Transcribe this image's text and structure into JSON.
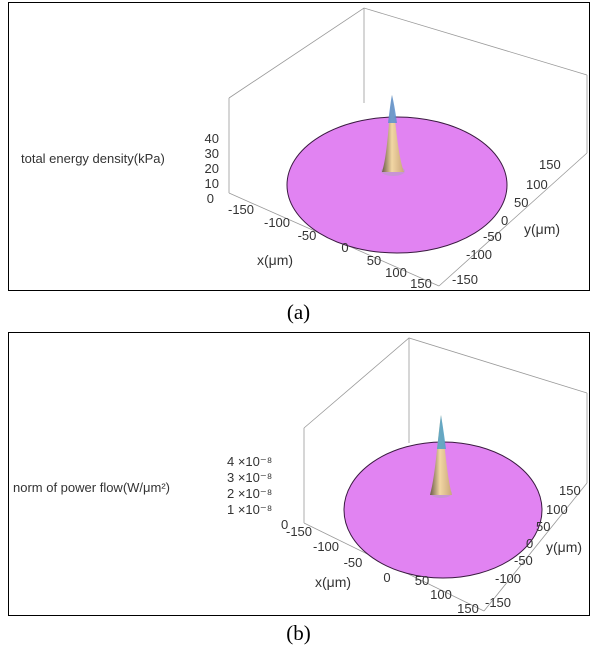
{
  "charts": [
    {
      "caption": "(a)",
      "zlabel": "total energy density(kPa)",
      "zticks": [
        "0",
        "10",
        "20",
        "30",
        "40"
      ],
      "xlabel": "x(μm)",
      "xticks": [
        "-150",
        "-100",
        "-50",
        "0",
        "50",
        "100",
        "150"
      ],
      "ylabel": "y(μm)",
      "yticks": [
        "150",
        "100",
        "50",
        "0",
        "-50",
        "-100",
        "-150"
      ]
    },
    {
      "caption": "(b)",
      "zlabel": "norm of power flow(W/μm²)",
      "zticks": [
        "0",
        "1 ×10⁻⁸",
        "2 ×10⁻⁸",
        "3 ×10⁻⁸",
        "4 ×10⁻⁸"
      ],
      "xlabel": "x(μm)",
      "xticks": [
        "-150",
        "-100",
        "-50",
        "0",
        "50",
        "100",
        "150"
      ],
      "ylabel": "y(μm)",
      "yticks": [
        "150",
        "100",
        "50",
        "0",
        "-50",
        "-100",
        "-150"
      ]
    }
  ],
  "chart_data": [
    {
      "type": "surface",
      "title": "",
      "xlabel": "x(μm)",
      "ylabel": "y(μm)",
      "zlabel": "total energy density(kPa)",
      "xlim": [
        -150,
        150
      ],
      "ylim": [
        -150,
        150
      ],
      "zlim": [
        0,
        45
      ],
      "domain": "disk",
      "peak": {
        "x": 0,
        "y": 0,
        "z": 45
      },
      "colors": {
        "disk": "#e183f2",
        "peak_top": "#5a8fd0",
        "peak_body": "#e8c79a"
      }
    },
    {
      "type": "surface",
      "title": "",
      "xlabel": "x(μm)",
      "ylabel": "y(μm)",
      "zlabel": "norm of power flow(W/μm²)",
      "xlim": [
        -150,
        150
      ],
      "ylim": [
        -150,
        150
      ],
      "zlim": [
        0,
        4.5e-08
      ],
      "domain": "disk",
      "peak": {
        "x": 0,
        "y": 0,
        "z": 4.5e-08
      },
      "colors": {
        "disk": "#e183f2",
        "peak_top": "#4fa0c8",
        "peak_body": "#e8c79a"
      }
    }
  ]
}
